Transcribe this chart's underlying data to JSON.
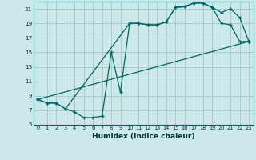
{
  "xlabel": "Humidex (Indice chaleur)",
  "bg_color": "#cce8e8",
  "grid_color": "#aacccc",
  "line_color": "#006666",
  "xlim": [
    -0.5,
    23.5
  ],
  "ylim": [
    5,
    22
  ],
  "xticks": [
    0,
    1,
    2,
    3,
    4,
    5,
    6,
    7,
    8,
    9,
    10,
    11,
    12,
    13,
    14,
    15,
    16,
    17,
    18,
    19,
    20,
    21,
    22,
    23
  ],
  "yticks": [
    5,
    7,
    9,
    11,
    13,
    15,
    17,
    19,
    21
  ],
  "line1_x": [
    0,
    1,
    2,
    3,
    4,
    5,
    6,
    7,
    8,
    9,
    10,
    11,
    12,
    13,
    14,
    15,
    16,
    17,
    18,
    19,
    20,
    21,
    22,
    23
  ],
  "line1_y": [
    8.5,
    8.0,
    8.0,
    7.2,
    6.8,
    6.0,
    6.0,
    6.2,
    15.0,
    9.5,
    19.0,
    19.0,
    18.8,
    18.8,
    19.2,
    21.2,
    21.3,
    21.8,
    21.8,
    21.2,
    19.0,
    18.8,
    16.5,
    16.5
  ],
  "line2_x": [
    0,
    1,
    2,
    3,
    10,
    11,
    12,
    13,
    14,
    15,
    16,
    17,
    18,
    19,
    20,
    21,
    22,
    23
  ],
  "line2_y": [
    8.5,
    8.0,
    8.0,
    7.2,
    19.0,
    19.0,
    18.8,
    18.8,
    19.2,
    21.2,
    21.3,
    21.8,
    21.8,
    21.2,
    20.5,
    21.0,
    19.8,
    16.5
  ],
  "line3_x": [
    0,
    23
  ],
  "line3_y": [
    8.5,
    16.5
  ]
}
